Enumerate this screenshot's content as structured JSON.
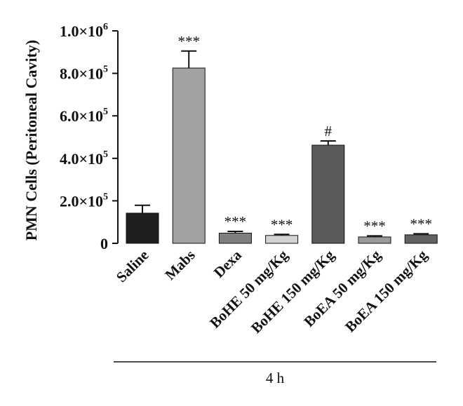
{
  "chart_data": {
    "type": "bar",
    "ylabel": "PMN Cells (Peritoneal Cavity)",
    "ylim": [
      0,
      1000000
    ],
    "yticks": [
      {
        "value": 0,
        "mantissa": "0",
        "exponent": ""
      },
      {
        "value": 200000,
        "mantissa": "2.0×10",
        "exponent": "5"
      },
      {
        "value": 400000,
        "mantissa": "4.0×10",
        "exponent": "5"
      },
      {
        "value": 600000,
        "mantissa": "6.0×10",
        "exponent": "5"
      },
      {
        "value": 800000,
        "mantissa": "8.0×10",
        "exponent": "5"
      },
      {
        "value": 1000000,
        "mantissa": "1.0×10",
        "exponent": "6"
      }
    ],
    "categories": [
      "Saline",
      "Mabs",
      "Dexa",
      "BoHE 50 mg/Kg",
      "BoHE 150 mg/Kg",
      "BoEA 50 mg/Kg",
      "BoEA 150 mg/Kg"
    ],
    "values": [
      142000,
      825000,
      48000,
      37000,
      462000,
      30000,
      40000
    ],
    "errors": [
      37000,
      80000,
      8000,
      5000,
      20000,
      5000,
      5000
    ],
    "annotations": [
      "",
      "***",
      "***",
      "***",
      "#",
      "***",
      "***"
    ],
    "colors": [
      "#1d1f1e",
      "#a2a1a3",
      "#807f7f",
      "#d3d2d0",
      "#5a5a5c",
      "#9b9a9a",
      "#626262"
    ],
    "group_label": "4 h",
    "grid": false,
    "legend": "none"
  }
}
